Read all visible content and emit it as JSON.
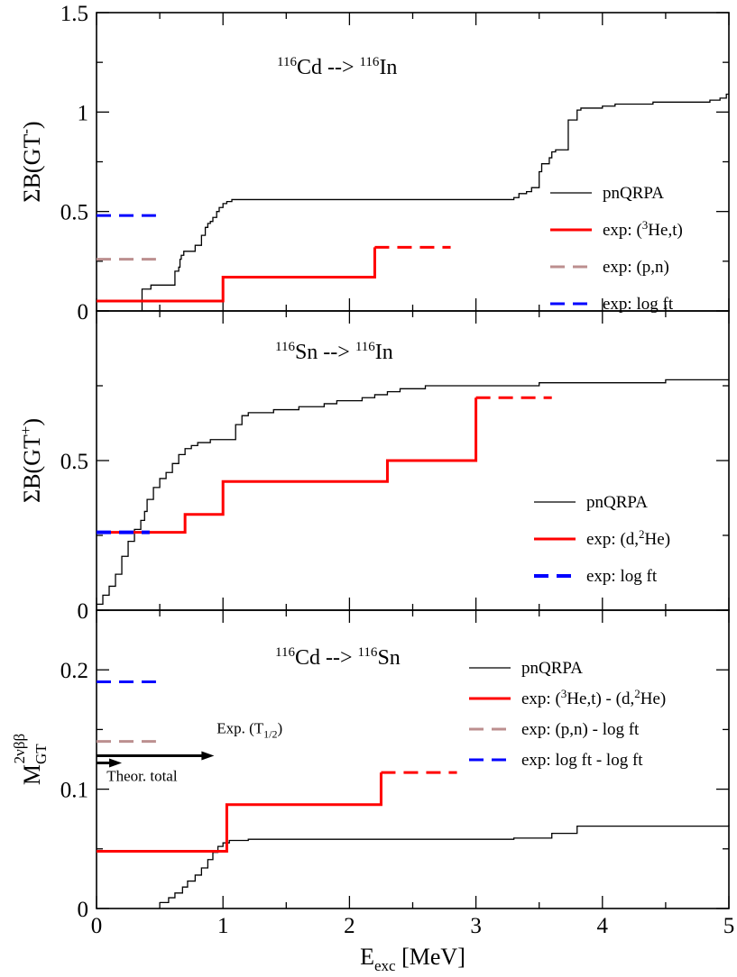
{
  "chart_data": [
    {
      "id": "cd_in",
      "type": "line",
      "title": {
        "pre": "116",
        "a": "Cd --> ",
        "sup": "116",
        "b": "In"
      },
      "ylabel": {
        "base": "ΣB(GT",
        "sup": "-",
        "end": ")"
      },
      "xlim": [
        0,
        5
      ],
      "ylim": [
        0,
        1.5
      ],
      "yticks": [
        {
          "v": 0,
          "label": "0"
        },
        {
          "v": 0.5,
          "label": "0.5"
        },
        {
          "v": 1,
          "label": "1"
        },
        {
          "v": 1.5,
          "label": "1.5"
        }
      ],
      "series": [
        {
          "name": "pnQRPA",
          "color": "#000000",
          "dash": false,
          "step": true,
          "width": 1.3,
          "x": [
            0.36,
            0.36,
            0.43,
            0.62,
            0.65,
            0.66,
            0.67,
            0.69,
            0.78,
            0.83,
            0.86,
            0.88,
            0.9,
            0.92,
            0.95,
            0.97,
            1.0,
            1.03,
            1.07,
            3.3,
            3.34,
            3.4,
            3.44,
            3.5,
            3.52,
            3.58,
            3.6,
            3.63,
            3.73,
            3.8,
            3.83,
            4.0,
            4.05,
            4.1,
            4.2,
            4.4,
            4.7,
            4.85,
            4.93,
            4.98,
            5.0
          ],
          "y": [
            0.0,
            0.11,
            0.13,
            0.2,
            0.22,
            0.26,
            0.28,
            0.3,
            0.33,
            0.38,
            0.42,
            0.44,
            0.45,
            0.47,
            0.5,
            0.52,
            0.54,
            0.55,
            0.56,
            0.57,
            0.59,
            0.6,
            0.62,
            0.7,
            0.74,
            0.77,
            0.8,
            0.81,
            0.96,
            1.01,
            1.02,
            1.03,
            1.03,
            1.04,
            1.04,
            1.05,
            1.05,
            1.06,
            1.07,
            1.09,
            1.09
          ]
        },
        {
          "name": "exp: (3He,t)",
          "color": "#ff0000",
          "dash": false,
          "step": true,
          "width": 3,
          "x": [
            0,
            1.0,
            2.2,
            2.2
          ],
          "y": [
            0.05,
            0.17,
            0.17,
            0.32
          ]
        },
        {
          "name": "exp: (3He,t) extension",
          "color": "#ff0000",
          "dash": true,
          "step": false,
          "width": 3,
          "x": [
            2.2,
            2.8
          ],
          "y": [
            0.32,
            0.32
          ]
        },
        {
          "name": "exp: (p,n)",
          "color": "#bc8f8f",
          "dash": true,
          "step": false,
          "width": 3,
          "x": [
            0,
            0.47
          ],
          "y": [
            0.26,
            0.26
          ]
        },
        {
          "name": "exp: log ft",
          "color": "#0000ff",
          "dash": true,
          "step": false,
          "width": 3,
          "x": [
            0,
            0.47
          ],
          "y": [
            0.48,
            0.48
          ]
        }
      ],
      "legend": [
        {
          "label": "pnQRPA",
          "color": "#000000",
          "dash": false,
          "width": 1.3
        },
        {
          "label": "exp: (3He,t)",
          "sup": "3",
          "pre": "exp: (",
          "post": "He,t)",
          "color": "#ff0000",
          "dash": false,
          "width": 3
        },
        {
          "label": "exp: (p,n)",
          "color": "#bc8f8f",
          "dash": true,
          "width": 3
        },
        {
          "label": "exp: log ft",
          "color": "#0000ff",
          "dash": true,
          "width": 3
        }
      ]
    },
    {
      "id": "sn_in",
      "type": "line",
      "title": {
        "pre": "116",
        "a": "Sn --> ",
        "sup": "116",
        "b": "In"
      },
      "ylabel": {
        "base": "ΣB(GT",
        "sup": "+",
        "end": ")"
      },
      "xlim": [
        0,
        5
      ],
      "ylim": [
        0,
        1.0
      ],
      "yticks": [
        {
          "v": 0,
          "label": "0"
        },
        {
          "v": 0.5,
          "label": "0.5"
        }
      ],
      "series": [
        {
          "name": "pnQRPA",
          "color": "#000000",
          "dash": false,
          "step": true,
          "width": 1.3,
          "x": [
            0,
            0.05,
            0.1,
            0.15,
            0.2,
            0.25,
            0.3,
            0.35,
            0.38,
            0.4,
            0.45,
            0.5,
            0.55,
            0.6,
            0.65,
            0.7,
            0.75,
            0.8,
            0.9,
            1.0,
            1.1,
            1.15,
            1.2,
            1.3,
            1.4,
            1.5,
            1.6,
            1.7,
            1.8,
            1.9,
            2.0,
            2.1,
            2.2,
            2.3,
            2.4,
            2.5,
            2.6,
            2.8,
            3.0,
            3.5,
            4.0,
            4.5,
            4.8,
            5.0
          ],
          "y": [
            0.02,
            0.05,
            0.08,
            0.12,
            0.18,
            0.23,
            0.27,
            0.3,
            0.33,
            0.37,
            0.41,
            0.44,
            0.46,
            0.49,
            0.52,
            0.54,
            0.55,
            0.56,
            0.57,
            0.57,
            0.62,
            0.65,
            0.66,
            0.66,
            0.67,
            0.67,
            0.68,
            0.68,
            0.69,
            0.7,
            0.7,
            0.71,
            0.72,
            0.73,
            0.74,
            0.74,
            0.75,
            0.75,
            0.75,
            0.76,
            0.76,
            0.77,
            0.77,
            0.77
          ]
        },
        {
          "name": "exp: (d,2He)",
          "color": "#ff0000",
          "dash": false,
          "step": true,
          "width": 3,
          "x": [
            0,
            0.7,
            1.0,
            2.3,
            3.0,
            3.0
          ],
          "y": [
            0.26,
            0.32,
            0.43,
            0.5,
            0.5,
            0.71
          ]
        },
        {
          "name": "exp: (d,2He) extension",
          "color": "#ff0000",
          "dash": true,
          "step": false,
          "width": 3,
          "x": [
            3.0,
            3.6
          ],
          "y": [
            0.71,
            0.71
          ]
        },
        {
          "name": "exp: log ft",
          "color": "#0000ff",
          "dash": true,
          "step": false,
          "width": 4,
          "x": [
            0,
            0.42
          ],
          "y": [
            0.26,
            0.26
          ]
        }
      ],
      "legend": [
        {
          "label": "pnQRPA",
          "color": "#000000",
          "dash": false,
          "width": 1.3
        },
        {
          "label": "exp: (d,2He)",
          "sup": "2",
          "pre": "exp: (d,",
          "post": "He)",
          "color": "#ff0000",
          "dash": false,
          "width": 3
        },
        {
          "label": "exp: log ft",
          "color": "#0000ff",
          "dash": true,
          "width": 4
        }
      ]
    },
    {
      "id": "cd_sn",
      "type": "line",
      "title": {
        "pre": "116",
        "a": "Cd --> ",
        "sup": "116",
        "b": "Sn"
      },
      "ylabel": {
        "base": "M",
        "sub": "GT",
        "sup": "2νββ"
      },
      "xlabel": {
        "base": "E",
        "sub": "exc",
        "end": " [MeV]"
      },
      "xlim": [
        0,
        5
      ],
      "ylim": [
        0,
        0.25
      ],
      "xticks": [
        {
          "v": 0,
          "label": "0"
        },
        {
          "v": 1,
          "label": "1"
        },
        {
          "v": 2,
          "label": "2"
        },
        {
          "v": 3,
          "label": "3"
        },
        {
          "v": 4,
          "label": "4"
        },
        {
          "v": 5,
          "label": "5"
        }
      ],
      "yticks": [
        {
          "v": 0,
          "label": "0"
        },
        {
          "v": 0.1,
          "label": "0.1"
        },
        {
          "v": 0.2,
          "label": "0.2"
        }
      ],
      "series": [
        {
          "name": "pnQRPA",
          "color": "#000000",
          "dash": false,
          "step": true,
          "width": 1.3,
          "x": [
            0.5,
            0.57,
            0.62,
            0.68,
            0.72,
            0.78,
            0.83,
            0.88,
            0.92,
            0.96,
            1.0,
            1.05,
            1.1,
            1.2,
            3.3,
            3.6,
            3.8,
            4.0,
            4.5,
            5.0
          ],
          "y": [
            0.005,
            0.009,
            0.013,
            0.018,
            0.023,
            0.028,
            0.034,
            0.041,
            0.047,
            0.052,
            0.055,
            0.057,
            0.057,
            0.058,
            0.059,
            0.063,
            0.069,
            0.069,
            0.069,
            0.07
          ]
        },
        {
          "name": "exp: (3He,t) - (d,2He)",
          "color": "#ff0000",
          "dash": false,
          "step": true,
          "width": 3,
          "x": [
            0,
            1.03,
            2.25,
            2.25
          ],
          "y": [
            0.048,
            0.087,
            0.087,
            0.114
          ]
        },
        {
          "name": "extension",
          "color": "#ff0000",
          "dash": true,
          "step": false,
          "width": 3,
          "x": [
            2.25,
            2.85
          ],
          "y": [
            0.114,
            0.114
          ]
        },
        {
          "name": "exp: (p,n) - log ft",
          "color": "#bc8f8f",
          "dash": true,
          "step": false,
          "width": 3,
          "x": [
            0,
            0.47
          ],
          "y": [
            0.14,
            0.14
          ]
        },
        {
          "name": "exp: log ft - log ft",
          "color": "#0000ff",
          "dash": true,
          "step": false,
          "width": 3,
          "x": [
            0,
            0.47
          ],
          "y": [
            0.19,
            0.19
          ]
        }
      ],
      "arrows": [
        {
          "label_base": "Exp. (T",
          "label_sub": "1/2",
          "label_end": ")",
          "y": 0.128,
          "x_end": 0.93,
          "label_x": 0.95,
          "label_y": 0.147,
          "color": "#000000"
        },
        {
          "label_base": "Theor. total",
          "y": 0.122,
          "x_end": 0.2,
          "label_x": 0.08,
          "label_y": 0.107,
          "color": "#000000"
        }
      ],
      "legend": [
        {
          "label": "pnQRPA",
          "color": "#000000",
          "dash": false,
          "width": 1.3
        },
        {
          "label": "exp: (3He,t) - (d,2He)",
          "pre": "exp: (",
          "sup": "3",
          "post": "He,t) - (d,",
          "sup2": "2",
          "post2": "He)",
          "color": "#ff0000",
          "dash": false,
          "width": 3
        },
        {
          "label": "exp: (p,n) - log ft",
          "color": "#bc8f8f",
          "dash": true,
          "width": 3
        },
        {
          "label": "exp: log ft - log ft",
          "color": "#0000ff",
          "dash": true,
          "width": 3
        }
      ]
    }
  ]
}
